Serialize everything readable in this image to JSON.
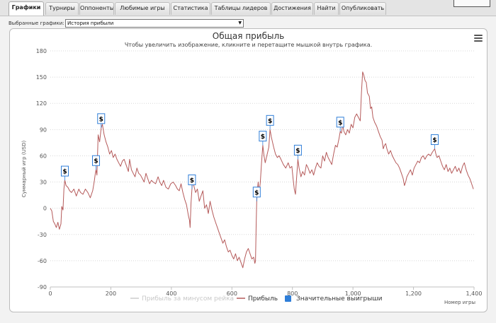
{
  "tabs": [
    {
      "label": "Графики",
      "active": true
    },
    {
      "label": "Турниры"
    },
    {
      "label": "Оппоненты"
    },
    {
      "label": "Любимые игры"
    },
    {
      "label": "Статистика"
    },
    {
      "label": "Таблицы лидеров"
    },
    {
      "label": "Достижения"
    },
    {
      "label": "Найти"
    },
    {
      "label": "Опубликовать"
    }
  ],
  "selector": {
    "label": "Выбранные графики:",
    "value": "История прибыли"
  },
  "chart": {
    "title": "Общая прибыль",
    "subtitle": "Чтобы увеличить изображение, кликните и перетащите мышкой внутрь графика.",
    "menu_icon": "hamburger-menu-icon"
  },
  "chart_data": {
    "type": "line",
    "ylabel": "Суммарный игр (USD)",
    "xlabel": "Номер игры",
    "xlim": [
      0,
      1400
    ],
    "ylim": [
      -90,
      180
    ],
    "x_ticks": [
      "0",
      "200",
      "400",
      "600",
      "800",
      "1,000",
      "1,200",
      "1,400"
    ],
    "y_ticks": [
      "-90",
      "-60",
      "-30",
      "0",
      "30",
      "60",
      "90",
      "120",
      "150",
      "180"
    ],
    "grid": "horizontal-dotted",
    "legend": {
      "placement": "bottom-center",
      "items": [
        {
          "name": "Прибыль за минусом рейка",
          "color": "#cccccc",
          "enabled": false
        },
        {
          "name": "Прибыль",
          "color": "#b55a5a"
        },
        {
          "name": "Значительные выигрыши",
          "color": "#2f7ed8"
        }
      ]
    },
    "series": [
      {
        "name": "Прибыль",
        "color": "#b55a5a",
        "points": [
          [
            0,
            0
          ],
          [
            5,
            -3
          ],
          [
            10,
            -15
          ],
          [
            15,
            -18
          ],
          [
            20,
            -22
          ],
          [
            25,
            -16
          ],
          [
            30,
            -24
          ],
          [
            35,
            -18
          ],
          [
            38,
            2
          ],
          [
            42,
            -2
          ],
          [
            45,
            22
          ],
          [
            48,
            32
          ],
          [
            52,
            26
          ],
          [
            58,
            24
          ],
          [
            64,
            20
          ],
          [
            70,
            18
          ],
          [
            78,
            22
          ],
          [
            86,
            14
          ],
          [
            94,
            22
          ],
          [
            100,
            18
          ],
          [
            108,
            16
          ],
          [
            116,
            22
          ],
          [
            124,
            18
          ],
          [
            132,
            12
          ],
          [
            140,
            20
          ],
          [
            145,
            30
          ],
          [
            148,
            38
          ],
          [
            151,
            44
          ],
          [
            154,
            38
          ],
          [
            158,
            84
          ],
          [
            163,
            76
          ],
          [
            168,
            92
          ],
          [
            172,
            96
          ],
          [
            178,
            84
          ],
          [
            184,
            76
          ],
          [
            190,
            70
          ],
          [
            196,
            62
          ],
          [
            202,
            66
          ],
          [
            208,
            58
          ],
          [
            214,
            62
          ],
          [
            220,
            56
          ],
          [
            226,
            52
          ],
          [
            232,
            48
          ],
          [
            238,
            54
          ],
          [
            244,
            56
          ],
          [
            250,
            50
          ],
          [
            258,
            42
          ],
          [
            262,
            56
          ],
          [
            268,
            44
          ],
          [
            274,
            40
          ],
          [
            280,
            36
          ],
          [
            286,
            46
          ],
          [
            292,
            40
          ],
          [
            298,
            38
          ],
          [
            304,
            34
          ],
          [
            310,
            30
          ],
          [
            316,
            40
          ],
          [
            322,
            34
          ],
          [
            328,
            28
          ],
          [
            334,
            32
          ],
          [
            340,
            30
          ],
          [
            348,
            28
          ],
          [
            356,
            36
          ],
          [
            362,
            30
          ],
          [
            368,
            26
          ],
          [
            374,
            32
          ],
          [
            382,
            24
          ],
          [
            390,
            22
          ],
          [
            398,
            28
          ],
          [
            406,
            30
          ],
          [
            414,
            26
          ],
          [
            420,
            22
          ],
          [
            426,
            20
          ],
          [
            432,
            28
          ],
          [
            438,
            18
          ],
          [
            444,
            10
          ],
          [
            450,
            4
          ],
          [
            456,
            -8
          ],
          [
            460,
            -14
          ],
          [
            462,
            -22
          ],
          [
            465,
            6
          ],
          [
            468,
            22
          ],
          [
            470,
            34
          ],
          [
            474,
            26
          ],
          [
            480,
            18
          ],
          [
            486,
            22
          ],
          [
            492,
            8
          ],
          [
            498,
            14
          ],
          [
            504,
            20
          ],
          [
            510,
            0
          ],
          [
            516,
            4
          ],
          [
            522,
            -6
          ],
          [
            528,
            8
          ],
          [
            534,
            -2
          ],
          [
            540,
            -10
          ],
          [
            546,
            -16
          ],
          [
            552,
            -22
          ],
          [
            558,
            -28
          ],
          [
            564,
            -34
          ],
          [
            570,
            -40
          ],
          [
            576,
            -36
          ],
          [
            582,
            -44
          ],
          [
            588,
            -50
          ],
          [
            594,
            -48
          ],
          [
            600,
            -54
          ],
          [
            606,
            -58
          ],
          [
            612,
            -52
          ],
          [
            618,
            -60
          ],
          [
            624,
            -56
          ],
          [
            630,
            -62
          ],
          [
            636,
            -68
          ],
          [
            642,
            -58
          ],
          [
            648,
            -50
          ],
          [
            654,
            -46
          ],
          [
            660,
            -52
          ],
          [
            666,
            -58
          ],
          [
            672,
            -56
          ],
          [
            676,
            -63
          ],
          [
            678,
            -60
          ],
          [
            680,
            -20
          ],
          [
            682,
            8
          ],
          [
            684,
            20
          ],
          [
            687,
            30
          ],
          [
            690,
            16
          ],
          [
            694,
            30
          ],
          [
            698,
            52
          ],
          [
            702,
            72
          ],
          [
            706,
            60
          ],
          [
            710,
            52
          ],
          [
            714,
            58
          ],
          [
            718,
            64
          ],
          [
            722,
            70
          ],
          [
            726,
            90
          ],
          [
            730,
            82
          ],
          [
            734,
            76
          ],
          [
            738,
            70
          ],
          [
            744,
            62
          ],
          [
            750,
            58
          ],
          [
            756,
            60
          ],
          [
            762,
            56
          ],
          [
            770,
            50
          ],
          [
            778,
            46
          ],
          [
            786,
            52
          ],
          [
            792,
            46
          ],
          [
            798,
            48
          ],
          [
            802,
            34
          ],
          [
            806,
            22
          ],
          [
            810,
            16
          ],
          [
            814,
            36
          ],
          [
            818,
            56
          ],
          [
            822,
            46
          ],
          [
            828,
            36
          ],
          [
            834,
            42
          ],
          [
            840,
            38
          ],
          [
            846,
            50
          ],
          [
            852,
            46
          ],
          [
            858,
            40
          ],
          [
            864,
            44
          ],
          [
            870,
            38
          ],
          [
            876,
            46
          ],
          [
            882,
            52
          ],
          [
            888,
            48
          ],
          [
            894,
            46
          ],
          [
            900,
            60
          ],
          [
            906,
            54
          ],
          [
            912,
            64
          ],
          [
            918,
            58
          ],
          [
            924,
            54
          ],
          [
            930,
            50
          ],
          [
            936,
            62
          ],
          [
            942,
            72
          ],
          [
            948,
            70
          ],
          [
            954,
            80
          ],
          [
            958,
            88
          ],
          [
            962,
            86
          ],
          [
            966,
            96
          ],
          [
            970,
            88
          ],
          [
            976,
            84
          ],
          [
            982,
            90
          ],
          [
            988,
            86
          ],
          [
            994,
            96
          ],
          [
            1000,
            92
          ],
          [
            1006,
            104
          ],
          [
            1012,
            108
          ],
          [
            1018,
            104
          ],
          [
            1024,
            100
          ],
          [
            1028,
            132
          ],
          [
            1032,
            156
          ],
          [
            1036,
            152
          ],
          [
            1040,
            146
          ],
          [
            1044,
            144
          ],
          [
            1048,
            132
          ],
          [
            1054,
            128
          ],
          [
            1058,
            114
          ],
          [
            1062,
            116
          ],
          [
            1066,
            104
          ],
          [
            1072,
            98
          ],
          [
            1078,
            94
          ],
          [
            1084,
            88
          ],
          [
            1090,
            82
          ],
          [
            1096,
            78
          ],
          [
            1100,
            68
          ],
          [
            1104,
            72
          ],
          [
            1108,
            74
          ],
          [
            1112,
            68
          ],
          [
            1118,
            62
          ],
          [
            1124,
            66
          ],
          [
            1130,
            60
          ],
          [
            1136,
            56
          ],
          [
            1142,
            52
          ],
          [
            1148,
            50
          ],
          [
            1154,
            46
          ],
          [
            1160,
            40
          ],
          [
            1166,
            34
          ],
          [
            1170,
            26
          ],
          [
            1174,
            30
          ],
          [
            1178,
            36
          ],
          [
            1184,
            40
          ],
          [
            1190,
            44
          ],
          [
            1196,
            38
          ],
          [
            1202,
            46
          ],
          [
            1208,
            50
          ],
          [
            1214,
            54
          ],
          [
            1220,
            52
          ],
          [
            1226,
            58
          ],
          [
            1232,
            60
          ],
          [
            1238,
            56
          ],
          [
            1244,
            60
          ],
          [
            1250,
            62
          ],
          [
            1256,
            60
          ],
          [
            1262,
            64
          ],
          [
            1266,
            66
          ],
          [
            1270,
            68
          ],
          [
            1274,
            62
          ],
          [
            1278,
            58
          ],
          [
            1284,
            60
          ],
          [
            1290,
            54
          ],
          [
            1296,
            48
          ],
          [
            1302,
            44
          ],
          [
            1308,
            50
          ],
          [
            1314,
            42
          ],
          [
            1320,
            46
          ],
          [
            1326,
            40
          ],
          [
            1332,
            44
          ],
          [
            1338,
            48
          ],
          [
            1344,
            42
          ],
          [
            1350,
            46
          ],
          [
            1356,
            40
          ],
          [
            1362,
            48
          ],
          [
            1368,
            52
          ],
          [
            1374,
            44
          ],
          [
            1380,
            38
          ],
          [
            1386,
            34
          ],
          [
            1392,
            28
          ],
          [
            1398,
            22
          ]
        ]
      }
    ],
    "big_wins": [
      {
        "label": "$",
        "x": 48,
        "y": 32
      },
      {
        "label": "$",
        "x": 151,
        "y": 44
      },
      {
        "label": "$",
        "x": 168,
        "y": 92
      },
      {
        "label": "$",
        "x": 468,
        "y": 22
      },
      {
        "label": "$",
        "x": 682,
        "y": 8
      },
      {
        "label": "$",
        "x": 702,
        "y": 72
      },
      {
        "label": "$",
        "x": 726,
        "y": 90
      },
      {
        "label": "$",
        "x": 818,
        "y": 56
      },
      {
        "label": "$",
        "x": 958,
        "y": 88
      },
      {
        "label": "$",
        "x": 1270,
        "y": 68
      }
    ]
  }
}
